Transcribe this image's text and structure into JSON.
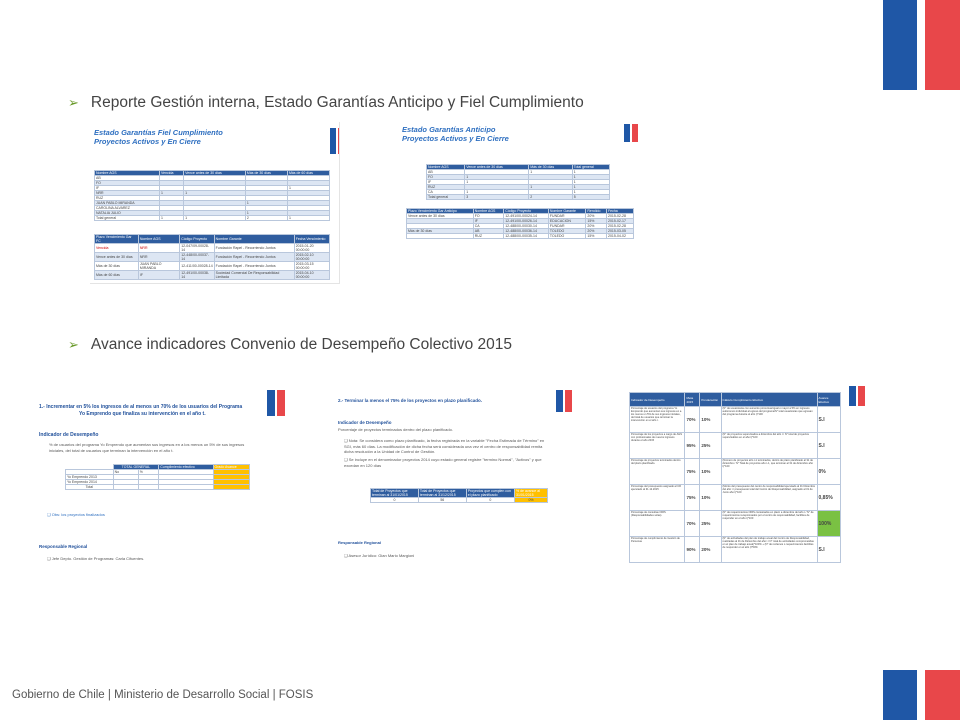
{
  "slide": {
    "bullet1": "Reporte Gestión interna, Estado Garantías Anticipo y Fiel Cumplimiento",
    "bullet2": "Avance indicadores Convenio de Desempeño Colectivo 2015",
    "footer": "Gobierno de Chile | Ministerio de Desarrollo Social | FOSIS"
  },
  "thumb1": {
    "title_line1": "Estado Garantías Fiel Cumplimiento",
    "title_line2": "Proyectos Activos y En Cierre",
    "table1_headers": [
      "Nombre AGS",
      "Vencida",
      "Vence antes de 30 días",
      "Más de 30 días",
      "Más de 60 días"
    ],
    "table1_rows": [
      [
        "AB",
        "",
        "",
        "",
        ""
      ],
      [
        "FO",
        "",
        "",
        "",
        ""
      ],
      [
        "IF",
        "",
        "",
        "",
        "1"
      ],
      [
        "NRR",
        "1",
        "1",
        "",
        ""
      ],
      [
        "RUZ",
        "",
        "",
        "",
        ""
      ],
      [
        "JUAN PABLO MIRANDA",
        "",
        "",
        "1",
        ""
      ],
      [
        "CAROLINA ALVAREZ",
        "",
        "",
        "",
        ""
      ],
      [
        "NATALIA JULIO",
        "",
        "",
        "1",
        ""
      ],
      [
        "Total general",
        "1",
        "1",
        "2",
        "1"
      ]
    ],
    "table2_headers": [
      "Plazo Vencimiento Gar FC",
      "Nombre AGS",
      "Código Proyecto",
      "Nombre Garante",
      "Fecha Vencimiento"
    ],
    "table2_rows": [
      [
        "Vencida",
        "NRR",
        "12-047/09-00028-14",
        "Fundación Rapel - Recorriendo Juntos",
        "2015-01-20 00:00:00"
      ],
      [
        "Vence antes de 30 días",
        "NRR",
        "12-448/00-00037-14",
        "Fundación Rapel - Recorriendo Juntos",
        "2015-02-10 00:00:00"
      ],
      [
        "Más de 30 días",
        "JUAN PABLO MIRANDA",
        "12-411/00-00028-14",
        "Fundación Rapel - Recorriendo Juntos",
        "2015-03-15 00:00:00"
      ],
      [
        "Más de 60 días",
        "IF",
        "12-491/00-00038-14",
        "Sociedad Comercial De Responsabilidad Limitada",
        "2015-04-10 00:00:00"
      ]
    ]
  },
  "thumb2": {
    "title_line1": "Estado Garantías Anticipo",
    "title_line2": "Proyectos Activos y En Cierre",
    "table1_headers": [
      "Nombre AGS",
      "Vence antes de 30 días",
      "Más de 30 días",
      "Total general"
    ],
    "table1_rows": [
      [
        "AB",
        "",
        "1",
        "1"
      ],
      [
        "FO",
        "1",
        "",
        "1"
      ],
      [
        "IF",
        "1",
        "",
        "1"
      ],
      [
        "RUZ",
        "",
        "1",
        "1"
      ],
      [
        "CA",
        "1",
        "",
        "1"
      ],
      [
        "Total general",
        "3",
        "2",
        "5"
      ]
    ],
    "table2_headers": [
      "Plazo Vencimiento Gar Anticipo",
      "Nombre AGS",
      "Código Proyecto",
      "Nombre Garante",
      "Rendido",
      "Fecha"
    ],
    "table2_rows": [
      [
        "Vence antes de 30 días",
        "FO",
        "12-491/00-00024-14",
        "FUNDAR",
        "20%",
        "2015-02-28"
      ],
      [
        "",
        "IF",
        "12-491/00-00026-14",
        "EDUCACION",
        "15%",
        "2015-02-17"
      ],
      [
        "",
        "CA",
        "12-488/00-00030-14",
        "FUNDAR",
        "20%",
        "2015-02-28"
      ],
      [
        "Más de 30 días",
        "AB",
        "12-488/00-00036-14",
        "TOLEDO",
        "20%",
        "2015-03-05"
      ],
      [
        "",
        "RUZ",
        "12-488/00-00035-14",
        "TOLEDO",
        "15%",
        "2015-04-02"
      ]
    ]
  },
  "thumb3": {
    "title_line1": "1.- Incrementar en 5% los ingresos de al menos un 70% de los usuarios del Programa",
    "title_line2": "Yo Emprendo que finaliza su intervención en el año t.",
    "indicator_heading": "Indicador de Desempeño",
    "indicator_text": "% de usuarios del programa Yo Emprendo que aumentan sus ingresos en a los menos un 5% de sus ingresos iniciales, del total de usuarios que terminan la intervención en el año t.",
    "table_headers": [
      "",
      "TOTAL GENERAL",
      "Cumplimiento efectivo",
      "Grado Avance"
    ],
    "table_subheaders": [
      "",
      "No",
      "%"
    ],
    "table_rows": [
      "Yo Emprendo 2013",
      "Yo Emprendo 2014",
      "Total"
    ],
    "note": "Obs: los proyectos finalizados",
    "responsable_heading": "Responsable Regional",
    "responsable": "Jefe Depto. Gestión de Programas: Carla Cifuentes."
  },
  "thumb4": {
    "title": "2.- Terminar la menos el 75% de los proyectos en plazo planificado.",
    "indicator_heading": "Indicador de Desempeño",
    "indicator_sub": "Porcentaje de proyectos terminados dentro del plazo planificado.",
    "note1": "Nota: Se considera como plazo planificado, la fecha registrada en la variable \"Fecha Estimada de Término\" en SGI, más 60 días. La modificación de dicha fecha será considerada una vez el centro de responsabilidad remita dicha resolución a la Unidad de Control de Gestión.",
    "note2": "Se incluye en el denominador proyectos 2014 cuyo estado general registre \"termino Normal\", \"Activos\" y que excedan en 120 días",
    "table_headers": [
      "Total de Proyectos que terminan al 31/01/2015",
      "Total de Proyectos que terminan al 31/12/2015",
      "Proyectos que cumplen con el plazo planificado",
      "% de avance al 31/01/2015"
    ],
    "table_values": [
      "0",
      "56",
      "0",
      "0%"
    ],
    "responsable_heading": "Responsable Regional",
    "responsable": "Asesor Jurídico: Gian Mario Margioni"
  },
  "thumb5": {
    "headers": [
      "Indicador de Desempeño",
      "Meta 2015",
      "Ponderación",
      "Cálculo Cumplimiento Efectivo",
      "Avance Efectivo"
    ],
    "rows": [
      {
        "indicator": "Porcentaje de usuarios del programa Yo Emprendo que aumentan sus ingresos en a los menos un 5% de sus ingresos iniciales, del total de usuarios que terminan la intervención en el año t.",
        "meta": "70%",
        "pond": "10%",
        "calc": "(N° de usuarios/as con aumento porcentual igual o mayor a 5% en ingresos autónomos individual al egreso del programa/N° total usuarios/as que egresan del programa durante el año t)*100",
        "avance": "S.I"
      },
      {
        "indicator": "Porcentaje de los proyectos a cargo de AGS con profesionales de nuevos ingresos durante el año 2015",
        "meta": "95%",
        "pond": "25%",
        "calc": "(N° de proyectos supervisados a diciembre del año t / N° total de proyectos supervisables en el año t)*100",
        "avance": "S.I"
      },
      {
        "indicator": "Porcentaje de proyectos terminados dentro del plazo planificado.",
        "meta": "75%",
        "pond": "10%",
        "calc": "(Número de proyectos año t-1 terminados, dentro de plazo planificado al 31 de diciembre / N° Total de proyectos año t-1, que terminan al 31 de diciembre año t)*100",
        "avance": "0%"
      },
      {
        "indicator": "Porcentaje del presupuesto asignado al CR ejecutado al 31.12.2015",
        "meta": "75%",
        "pond": "10%",
        "calc": "(Monto del presupuesto del centro de responsabilidad ejecutado al 31 Diciembre del año t / presupuesto total del Centro de Responsabilidad, asignado al 31 de Junio año t)*100",
        "avance": "0,85%"
      },
      {
        "indicator": "Porcentaje de consultas OIRS (Responsabilidades solas).",
        "meta": "70%",
        "pond": "25%",
        "calc": "(N° de requerimientos OIRS contestados en plazo a diciembre del año t / N° de requerimientos recepcionados por el centro de responsabilidad, factibles de responder en el año t)*100",
        "avance": "100%"
      },
      {
        "indicator": "Porcentaje de cumplimiento de Gestión de Personas",
        "meta": "90%",
        "pond": "20%",
        "calc": "(N° de actividades del plan de trabajo anual del Centro de Responsabilidad, realizadas al 31 de Diciembre del año t / N° total de actividades comprometidas en el plan de trabajo anual)*100% + (N° de reclamos o requerimientos factibles de responder en el año t)*50%",
        "avance": "S.I"
      }
    ]
  },
  "colors": {
    "flag_blue": "#1f57a6",
    "flag_red": "#e8474a",
    "arrow_green": "#6a9a2a",
    "highlight_yellow": "#ffc000",
    "highlight_green": "#7ac143"
  }
}
